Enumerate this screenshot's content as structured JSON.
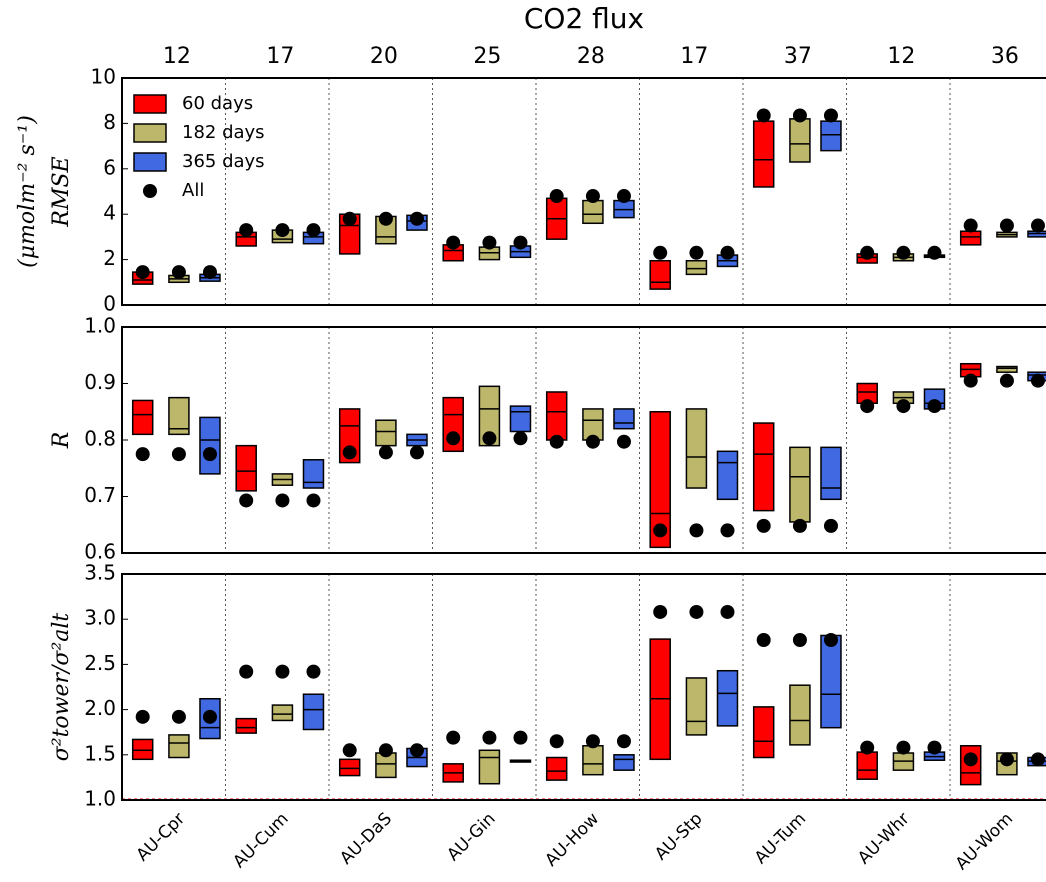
{
  "chart_data": [
    {
      "type": "box",
      "title": "CO2 flux",
      "top_labels": [
        12,
        17,
        20,
        25,
        28,
        17,
        37,
        12,
        36
      ],
      "ylabel": [
        "(μmolm⁻² s⁻¹)",
        "RMSE"
      ],
      "ylim": [
        0,
        10
      ],
      "yticks": [
        0,
        2,
        4,
        6,
        8,
        10
      ],
      "legend": "upper left",
      "series": [
        {
          "name": "60 days",
          "color": "#ff0000",
          "low": [
            0.92,
            2.6,
            2.25,
            1.95,
            2.9,
            0.7,
            5.2,
            1.85,
            2.65
          ],
          "median": [
            1.1,
            3.0,
            3.5,
            2.4,
            3.8,
            1.0,
            6.4,
            2.1,
            3.0
          ],
          "high": [
            1.45,
            3.2,
            4.0,
            2.65,
            4.7,
            1.95,
            8.1,
            2.25,
            3.25
          ]
        },
        {
          "name": "182 days",
          "color": "#bdb76b",
          "low": [
            1.0,
            2.75,
            2.7,
            2.0,
            3.6,
            1.35,
            6.3,
            1.95,
            3.0
          ],
          "median": [
            1.15,
            2.9,
            3.0,
            2.3,
            4.0,
            1.6,
            7.1,
            2.1,
            3.1
          ],
          "high": [
            1.3,
            3.3,
            3.9,
            2.55,
            4.6,
            1.95,
            8.2,
            2.25,
            3.2
          ]
        },
        {
          "name": "365 days",
          "color": "#4169e1",
          "low": [
            1.05,
            2.7,
            3.3,
            2.1,
            3.85,
            1.7,
            6.8,
            2.1,
            3.0
          ],
          "median": [
            1.2,
            3.0,
            3.7,
            2.35,
            4.2,
            1.95,
            7.5,
            2.15,
            3.15
          ],
          "high": [
            1.35,
            3.2,
            3.95,
            2.6,
            4.6,
            2.2,
            8.1,
            2.2,
            3.25
          ]
        }
      ],
      "all": {
        "name": "All",
        "color": "#000000",
        "values": [
          1.45,
          3.3,
          3.8,
          2.75,
          4.8,
          2.3,
          8.35,
          2.3,
          3.5
        ]
      }
    },
    {
      "type": "box",
      "ylabel": [
        "R"
      ],
      "ylim": [
        0.6,
        1.0
      ],
      "yticks": [
        0.6,
        0.7,
        0.8,
        0.9,
        {
          "value": 1,
          "label": "1.0"
        }
      ],
      "series": [
        {
          "color": "#ff0000",
          "low": [
            0.81,
            0.71,
            0.76,
            0.78,
            0.8,
            0.61,
            0.675,
            0.865,
            0.912
          ],
          "median": [
            0.845,
            0.745,
            0.825,
            0.845,
            0.85,
            0.67,
            0.775,
            0.885,
            0.925
          ],
          "high": [
            0.87,
            0.79,
            0.855,
            0.875,
            0.885,
            0.85,
            0.83,
            0.9,
            0.935
          ]
        },
        {
          "color": "#bdb76b",
          "low": [
            0.81,
            0.72,
            0.79,
            0.79,
            0.8,
            0.715,
            0.655,
            0.865,
            0.92
          ],
          "median": [
            0.82,
            0.73,
            0.815,
            0.855,
            0.835,
            0.77,
            0.735,
            0.875,
            0.927
          ],
          "high": [
            0.875,
            0.74,
            0.835,
            0.895,
            0.855,
            0.855,
            0.787,
            0.885,
            0.93
          ]
        },
        {
          "color": "#4169e1",
          "low": [
            0.74,
            0.715,
            0.79,
            0.815,
            0.82,
            0.695,
            0.695,
            0.855,
            0.905
          ],
          "median": [
            0.8,
            0.725,
            0.8,
            0.85,
            0.83,
            0.76,
            0.715,
            0.865,
            0.915
          ],
          "high": [
            0.84,
            0.765,
            0.81,
            0.86,
            0.855,
            0.78,
            0.787,
            0.89,
            0.92
          ]
        }
      ],
      "all": {
        "color": "#000000",
        "values": [
          0.775,
          0.693,
          0.778,
          0.803,
          0.797,
          0.64,
          0.648,
          0.86,
          0.905
        ]
      }
    },
    {
      "type": "box",
      "ylabel": [
        "σ²tower/σ²alt"
      ],
      "ylim": [
        1.0,
        3.5
      ],
      "yticks": [
        {
          "value": 1,
          "label": "1.0"
        },
        1.5,
        {
          "value": 2,
          "label": "2.0"
        },
        2.5,
        {
          "value": 3,
          "label": "3.0"
        },
        3.5
      ],
      "reference_line": {
        "value": 1,
        "color": "#ff0000"
      },
      "categories": [
        "AU-Cpr",
        "AU-Cum",
        "AU-DaS",
        "AU-Gin",
        "AU-How",
        "AU-Stp",
        "AU-Tum",
        "AU-Whr",
        "AU-Wom"
      ],
      "series": [
        {
          "color": "#ff0000",
          "low": [
            1.45,
            1.74,
            1.27,
            1.2,
            1.22,
            1.45,
            1.47,
            1.23,
            1.17
          ],
          "median": [
            1.55,
            1.8,
            1.35,
            1.3,
            1.32,
            2.12,
            1.65,
            1.33,
            1.3
          ],
          "high": [
            1.67,
            1.9,
            1.45,
            1.4,
            1.47,
            2.78,
            2.03,
            1.53,
            1.6
          ]
        },
        {
          "color": "#bdb76b",
          "low": [
            1.47,
            1.88,
            1.25,
            1.18,
            1.28,
            1.72,
            1.61,
            1.33,
            1.28
          ],
          "median": [
            1.63,
            1.95,
            1.4,
            1.47,
            1.4,
            1.87,
            1.88,
            1.43,
            1.43
          ],
          "high": [
            1.72,
            2.05,
            1.52,
            1.55,
            1.6,
            2.35,
            2.27,
            1.52,
            1.52
          ]
        },
        {
          "color": "#4169e1",
          "low": [
            1.68,
            1.78,
            1.37,
            1.42,
            1.33,
            1.82,
            1.8,
            1.44,
            1.38
          ],
          "median": [
            1.8,
            2.0,
            1.47,
            1.43,
            1.45,
            2.18,
            2.17,
            1.48,
            1.43
          ],
          "high": [
            2.12,
            2.17,
            1.57,
            1.44,
            1.5,
            2.43,
            2.82,
            1.53,
            1.47
          ]
        }
      ],
      "all": {
        "color": "#000000",
        "values": [
          1.92,
          2.42,
          1.55,
          1.69,
          1.65,
          3.08,
          2.77,
          1.58,
          1.45
        ]
      }
    }
  ]
}
